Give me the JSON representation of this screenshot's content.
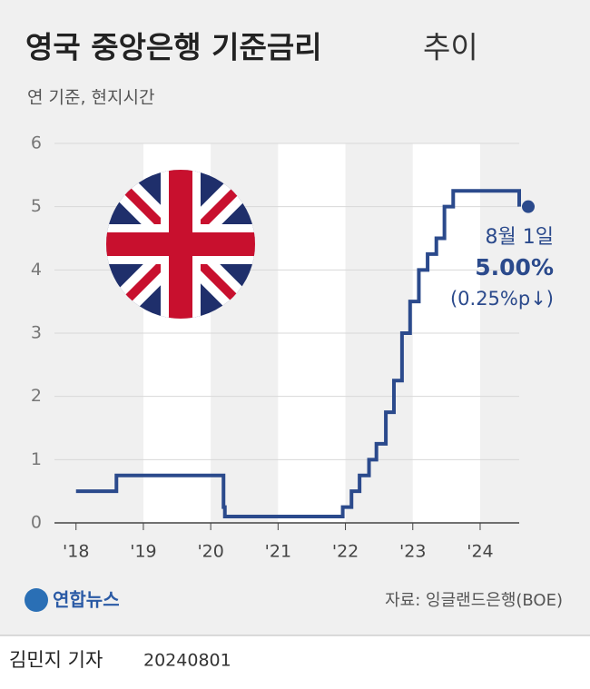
{
  "chart_data": {
    "type": "step",
    "title": "영국 중앙은행 기준금리",
    "title_suffix": "추이",
    "subtitle": "연 기준, 현지시간",
    "x": [
      2018.0,
      2018.6,
      2020.19,
      2020.21,
      2021.96,
      2022.09,
      2022.21,
      2022.35,
      2022.46,
      2022.6,
      2022.72,
      2022.84,
      2022.96,
      2023.09,
      2023.22,
      2023.35,
      2023.47,
      2023.6,
      2024.58
    ],
    "series": [
      {
        "color": "#2b4a8c",
        "values": [
          0.5,
          0.75,
          0.25,
          0.1,
          0.25,
          0.5,
          0.75,
          1,
          1.25,
          1.75,
          2.25,
          3,
          3.5,
          4,
          4.25,
          4.5,
          5,
          5.25,
          5
        ]
      }
    ],
    "xlim": [
      2017.68,
      2024.58
    ],
    "xticks": [
      {
        "value": 2018,
        "label": "'18"
      },
      {
        "value": 2019,
        "label": "'19"
      },
      {
        "value": 2020,
        "label": "'20"
      },
      {
        "value": 2021,
        "label": "'21"
      },
      {
        "value": 2022,
        "label": "'22"
      },
      {
        "value": 2023,
        "label": "'23"
      },
      {
        "value": 2024,
        "label": "'24"
      }
    ],
    "ylim": [
      0,
      6
    ],
    "yticks": [
      0,
      1,
      2,
      3,
      4,
      5,
      6
    ],
    "annotations": [
      "8월 1일",
      "5.00%",
      "(0.25%p↓)"
    ],
    "source": "자료: 잉글랜드은행(BOE)",
    "logo": "연합뉴스"
  },
  "footer": {
    "author": "김민지 기자",
    "date": "20240801"
  }
}
